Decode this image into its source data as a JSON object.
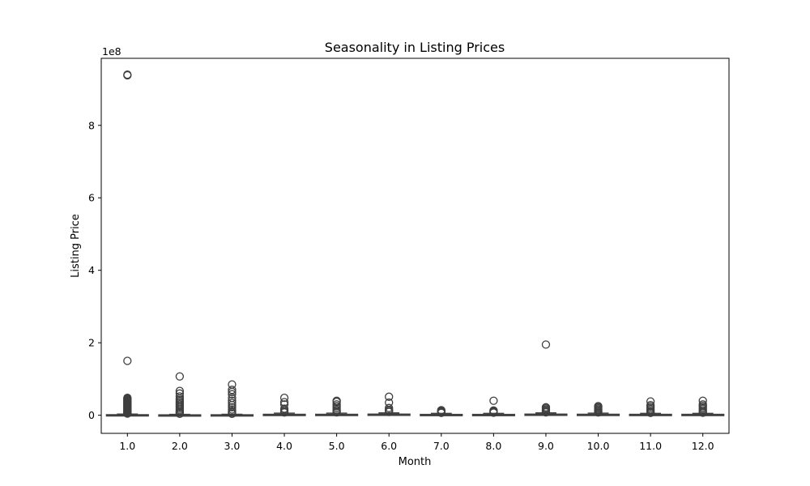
{
  "chart_data": {
    "type": "box",
    "title": "Seasonality in Listing Prices",
    "xlabel": "Month",
    "ylabel": "Listing Price",
    "y_offset_label": "1e8",
    "y_scale_factor": 100000000,
    "ylim": [
      -50000000,
      985000000
    ],
    "y_ticks": [
      0,
      200000000,
      400000000,
      600000000,
      800000000
    ],
    "y_tick_labels": [
      "0",
      "2",
      "4",
      "6",
      "8"
    ],
    "categories": [
      "1.0",
      "2.0",
      "3.0",
      "4.0",
      "5.0",
      "6.0",
      "7.0",
      "8.0",
      "9.0",
      "10.0",
      "11.0",
      "12.0"
    ],
    "grid": false,
    "box_color": "#3b75af",
    "series": [
      {
        "category": "1.0",
        "q1": 250000,
        "median": 600000,
        "q3": 1400000,
        "whisker_low": 0,
        "whisker_high": 3000000,
        "outliers": [
          940000000,
          938000000,
          150000000,
          48000000,
          46000000,
          44000000,
          42000000,
          40000000,
          38000000,
          36000000,
          34000000,
          32000000,
          30000000,
          28000000,
          26000000,
          24000000,
          22000000,
          20000000,
          18000000,
          16000000,
          14000000,
          12000000,
          10000000,
          8000000,
          6000000,
          4500000
        ]
      },
      {
        "category": "2.0",
        "q1": 200000,
        "median": 450000,
        "q3": 1000000,
        "whisker_low": 0,
        "whisker_high": 2200000,
        "outliers": [
          107000000,
          67000000,
          60000000,
          52000000,
          46000000,
          42000000,
          38000000,
          34000000,
          30000000,
          26000000,
          22000000,
          18000000,
          14000000,
          10000000,
          7000000,
          4000000
        ]
      },
      {
        "category": "3.0",
        "q1": 200000,
        "median": 500000,
        "q3": 1200000,
        "whisker_low": 0,
        "whisker_high": 2600000,
        "outliers": [
          85000000,
          70000000,
          64000000,
          58000000,
          48000000,
          40000000,
          34000000,
          28000000,
          22000000,
          16000000,
          11000000,
          7000000,
          4000000
        ]
      },
      {
        "category": "4.0",
        "q1": 300000,
        "median": 1000000,
        "q3": 2500000,
        "whisker_low": 0,
        "whisker_high": 5500000,
        "outliers": [
          48000000,
          36000000,
          30000000,
          18000000,
          14000000,
          10000000,
          7500000
        ]
      },
      {
        "category": "5.0",
        "q1": 300000,
        "median": 1000000,
        "q3": 2500000,
        "whisker_low": 0,
        "whisker_high": 5500000,
        "outliers": [
          40000000,
          37000000,
          30000000,
          25000000,
          20000000,
          15000000,
          11000000,
          8000000
        ]
      },
      {
        "category": "6.0",
        "q1": 300000,
        "median": 1200000,
        "q3": 3000000,
        "whisker_low": 0,
        "whisker_high": 6500000,
        "outliers": [
          51000000,
          35000000,
          20000000,
          15000000,
          12000000,
          9000000
        ]
      },
      {
        "category": "7.0",
        "q1": 300000,
        "median": 900000,
        "q3": 2200000,
        "whisker_low": 0,
        "whisker_high": 5000000,
        "outliers": [
          14000000,
          12000000,
          10000000,
          8000000,
          6500000
        ]
      },
      {
        "category": "8.0",
        "q1": 300000,
        "median": 900000,
        "q3": 2200000,
        "whisker_low": 0,
        "whisker_high": 5000000,
        "outliers": [
          40000000,
          13000000,
          11000000,
          9000000,
          7000000
        ]
      },
      {
        "category": "9.0",
        "q1": 400000,
        "median": 1300000,
        "q3": 3000000,
        "whisker_low": 0,
        "whisker_high": 6500000,
        "outliers": [
          195000000,
          22000000,
          19000000,
          16000000,
          13000000,
          10000000,
          8000000
        ]
      },
      {
        "category": "10.0",
        "q1": 300000,
        "median": 1100000,
        "q3": 2600000,
        "whisker_low": 0,
        "whisker_high": 5500000,
        "outliers": [
          25000000,
          22000000,
          19000000,
          16000000,
          13000000,
          10000000,
          7500000
        ]
      },
      {
        "category": "11.0",
        "q1": 300000,
        "median": 1000000,
        "q3": 2400000,
        "whisker_low": 0,
        "whisker_high": 5000000,
        "outliers": [
          38000000,
          28000000,
          24000000,
          20000000,
          16000000,
          12000000,
          9000000,
          6500000
        ]
      },
      {
        "category": "12.0",
        "q1": 300000,
        "median": 1000000,
        "q3": 2400000,
        "whisker_low": 0,
        "whisker_high": 5000000,
        "outliers": [
          40000000,
          30000000,
          26000000,
          22000000,
          18000000,
          14000000,
          10000000,
          7000000
        ]
      }
    ]
  }
}
